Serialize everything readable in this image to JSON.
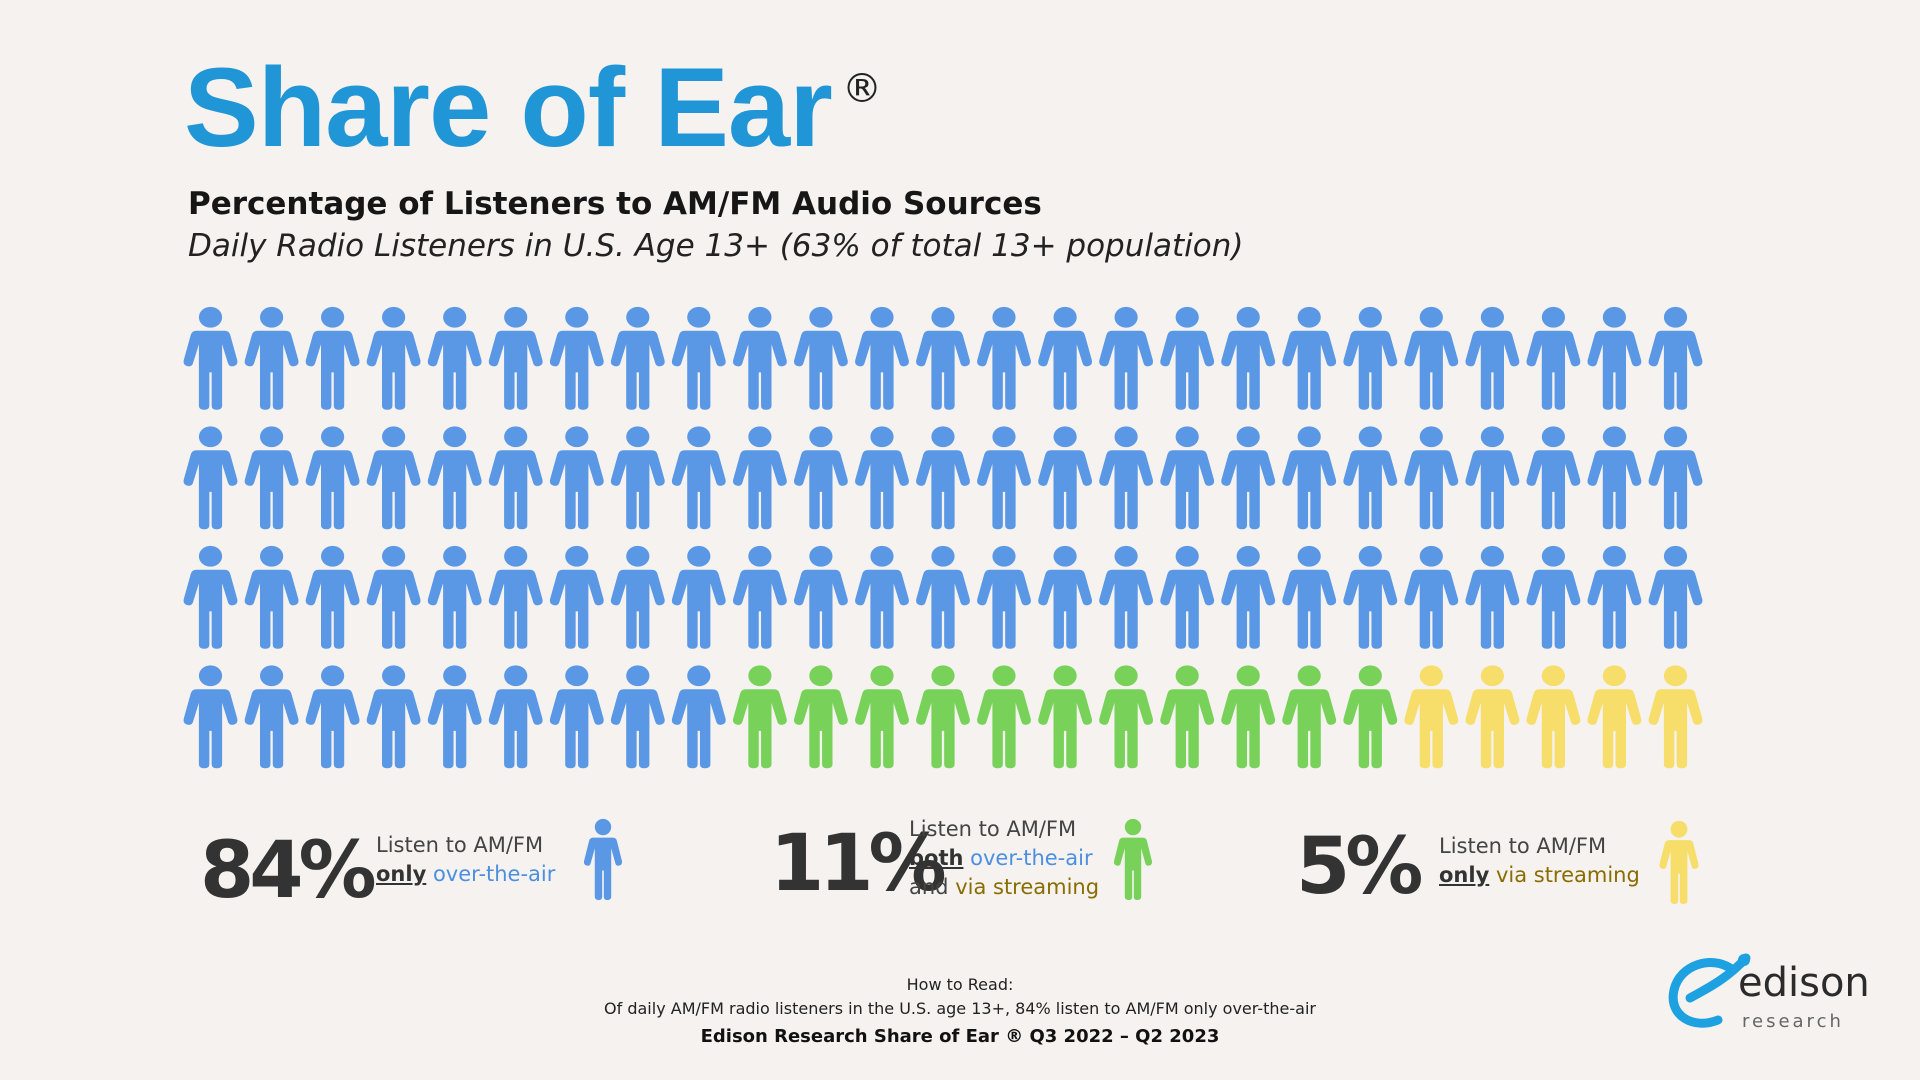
{
  "header": {
    "title": "Share of Ear",
    "registered": "®",
    "subtitle": "Percentage of Listeners to AM/FM Audio Sources",
    "subtitle2": "Daily Radio Listeners in U.S. Age 13+ (63% of total 13+ population)"
  },
  "chart_data": {
    "type": "pictograph",
    "total_icons": 100,
    "columns": 25,
    "rows": 4,
    "segments": [
      {
        "label": "Listen to AM/FM only over-the-air",
        "percent": 84,
        "color": "#5a98e6"
      },
      {
        "label": "Listen to AM/FM both over-the-air and via streaming",
        "percent": 11,
        "color": "#78d25a"
      },
      {
        "label": "Listen to AM/FM only via streaming",
        "percent": 5,
        "color": "#f7dd6a"
      }
    ]
  },
  "legend": {
    "otA": {
      "value": "84%",
      "line1": "Listen to AM/FM",
      "em": "only",
      "rest": "over-the-air"
    },
    "both": {
      "value": "11%",
      "line1": "Listen to AM/FM",
      "em": "both",
      "rest": "over-the-air",
      "line3a": "and",
      "line3b": "via streaming"
    },
    "stream": {
      "value": "5%",
      "line1": "Listen to AM/FM",
      "em": "only",
      "rest": "via streaming"
    }
  },
  "footer": {
    "howto_title": "How to Read:",
    "howto_text": "Of daily AM/FM radio listeners in the U.S. age 13+, 84% listen to AM/FM only over-the-air",
    "source": "Edison Research Share of Ear ® Q3 2022 – Q2 2023"
  },
  "logo": {
    "word": "edison",
    "sub": "research"
  }
}
